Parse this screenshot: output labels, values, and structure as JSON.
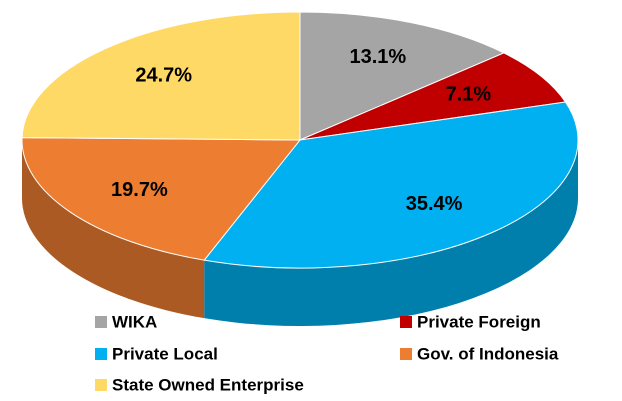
{
  "chart_data": {
    "type": "pie",
    "categories": [
      "WIKA",
      "Private Foreign",
      "Private Local",
      "Gov. of Indonesia",
      "State Owned Enterprise"
    ],
    "values": [
      13.1,
      7.1,
      35.4,
      19.7,
      24.7
    ],
    "value_labels": [
      "13.1%",
      "7.1%",
      "35.4%",
      "19.7%",
      "24.7%"
    ],
    "colors": [
      "#a5a5a5",
      "#c00000",
      "#00b0f0",
      "#ed7d31",
      "#ffd966"
    ],
    "legend": "bottom"
  }
}
